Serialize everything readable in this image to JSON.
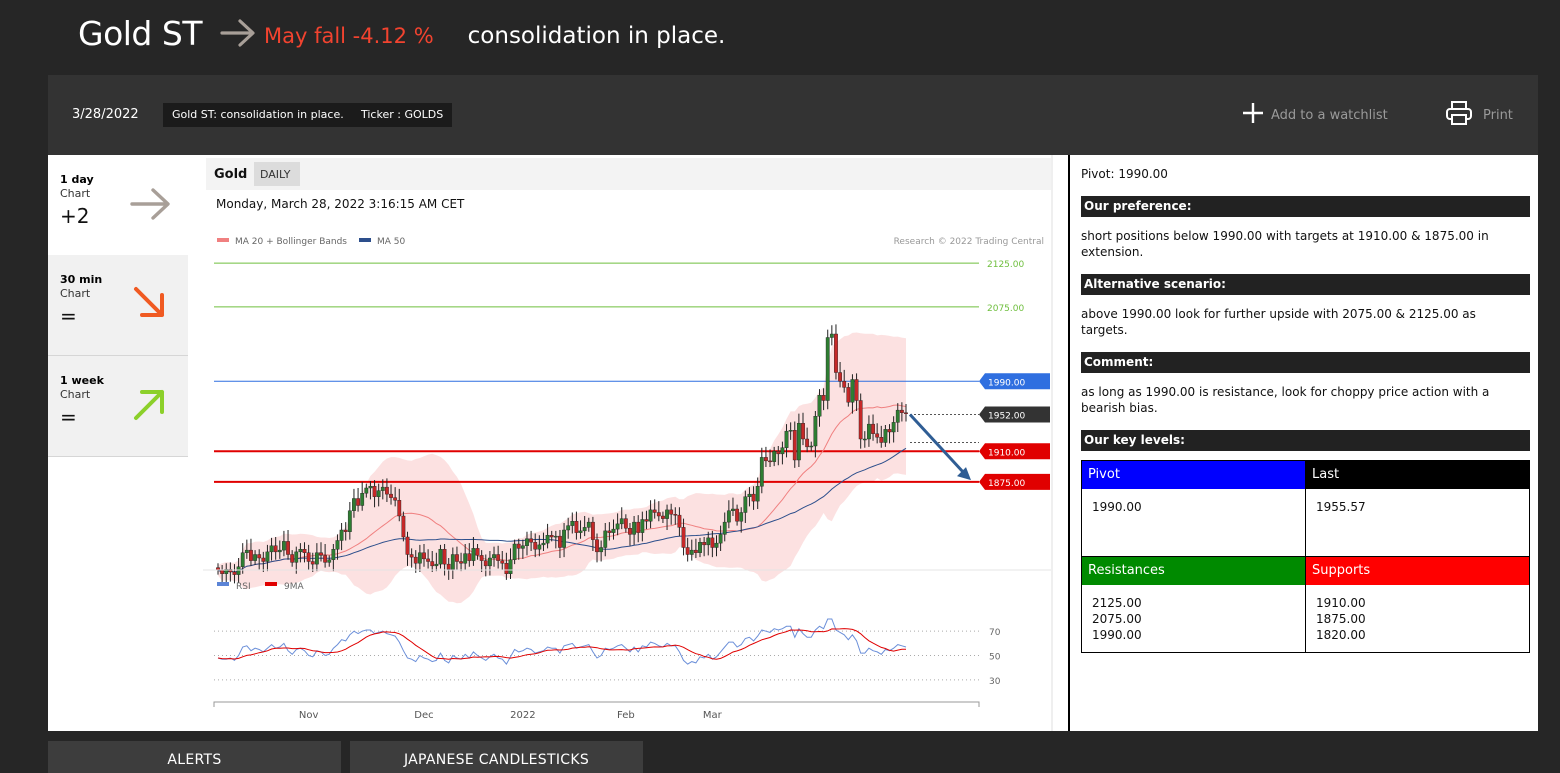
{
  "header": {
    "instrument": "Gold ST",
    "direction_icon": "arrow-right-icon",
    "move_text": "May fall -4.12 %",
    "summary": "consolidation in place."
  },
  "toolbar": {
    "date": "3/28/2022",
    "headline_badge": "Gold ST: consolidation in place.",
    "ticker_badge": "Ticker : GOLDS",
    "watchlist_label": "Add to a watchlist",
    "print_label": "Print"
  },
  "timeframes": [
    {
      "name": "1 day",
      "sub": "Chart",
      "value": "+2",
      "icon": "arrow-right-icon",
      "color": "#a89f98"
    },
    {
      "name": "30 min",
      "sub": "Chart",
      "value": "=",
      "icon": "arrow-down-right-icon",
      "color": "#f05a22"
    },
    {
      "name": "1 week",
      "sub": "Chart",
      "value": "=",
      "icon": "arrow-up-right-icon",
      "color": "#8cd02a"
    }
  ],
  "chart": {
    "instrument": "Gold",
    "period": "DAILY",
    "timestamp": "Monday, March 28, 2022 3:16:15 AM CET",
    "legend_ma20": "MA 20 + Bollinger Bands",
    "legend_ma50": "MA 50",
    "copyright": "Research © 2022 Trading Central",
    "rsi_legend": "RSI",
    "rsi_ma_legend": "9MA"
  },
  "chart_data": {
    "type": "candlestick",
    "price_ylim": [
      1780,
      2140
    ],
    "target_lines": [
      {
        "label": "2125.00",
        "value": 2125.0,
        "color": "#6fbf3e"
      },
      {
        "label": "2075.00",
        "value": 2075.0,
        "color": "#6fbf3e"
      }
    ],
    "pivot_line": {
      "label": "1990.00",
      "value": 1990.0,
      "color": "#2f6fe0"
    },
    "last_line": {
      "label": "1952.00",
      "value": 1952.0,
      "color": "#333333"
    },
    "support_lines": [
      {
        "label": "1910.00",
        "value": 1910.0,
        "color": "#e00000"
      },
      {
        "label": "1875.00",
        "value": 1875.0,
        "color": "#e00000"
      }
    ],
    "rsi_ylim": [
      25,
      80
    ],
    "rsi_levels": [
      70,
      50,
      30
    ],
    "x_ticks": [
      "Nov",
      "Dec",
      "2022",
      "Feb",
      "Mar"
    ],
    "closes": [
      1774,
      1770,
      1775,
      1772,
      1769,
      1778,
      1794,
      1797,
      1785,
      1792,
      1788,
      1784,
      1795,
      1802,
      1795,
      1797,
      1807,
      1792,
      1783,
      1795,
      1798,
      1794,
      1784,
      1781,
      1794,
      1791,
      1783,
      1786,
      1798,
      1808,
      1820,
      1818,
      1842,
      1856,
      1848,
      1862,
      1868,
      1870,
      1858,
      1865,
      1869,
      1861,
      1857,
      1854,
      1836,
      1812,
      1792,
      1789,
      1782,
      1794,
      1787,
      1784,
      1779,
      1781,
      1798,
      1781,
      1775,
      1792,
      1784,
      1782,
      1793,
      1785,
      1799,
      1791,
      1785,
      1779,
      1788,
      1792,
      1785,
      1782,
      1770,
      1786,
      1804,
      1799,
      1802,
      1810,
      1806,
      1798,
      1803,
      1805,
      1814,
      1812,
      1813,
      1800,
      1820,
      1825,
      1830,
      1817,
      1819,
      1823,
      1829,
      1809,
      1795,
      1800,
      1819,
      1817,
      1821,
      1827,
      1833,
      1822,
      1815,
      1829,
      1817,
      1832,
      1830,
      1843,
      1840,
      1836,
      1833,
      1843,
      1838,
      1837,
      1823,
      1800,
      1792,
      1797,
      1794,
      1806,
      1803,
      1811,
      1800,
      1805,
      1815,
      1829,
      1842,
      1844,
      1830,
      1840,
      1858,
      1861,
      1853,
      1870,
      1903,
      1899,
      1898,
      1910,
      1907,
      1914,
      1933,
      1934,
      1900,
      1942,
      1924,
      1915,
      1916,
      1950,
      1974,
      1968,
      2040,
      2044,
      2000,
      1990,
      1983,
      1966,
      1992,
      1968,
      1924,
      1924,
      1941,
      1930,
      1926,
      1920,
      1935,
      1932,
      1943,
      1957,
      1954,
      1953
    ],
    "rsi": [
      48,
      47,
      47,
      48,
      46,
      50,
      57,
      58,
      54,
      56,
      55,
      53,
      56,
      59,
      56,
      57,
      60,
      54,
      51,
      55,
      56,
      54,
      50,
      49,
      54,
      53,
      50,
      51,
      56,
      59,
      63,
      62,
      67,
      70,
      68,
      70,
      71,
      71,
      68,
      69,
      70,
      68,
      67,
      66,
      61,
      54,
      48,
      47,
      45,
      50,
      48,
      47,
      45,
      46,
      52,
      46,
      44,
      50,
      48,
      47,
      51,
      48,
      53,
      50,
      48,
      46,
      49,
      51,
      48,
      47,
      43,
      49,
      55,
      53,
      54,
      56,
      55,
      52,
      53,
      54,
      57,
      56,
      56,
      52,
      58,
      59,
      60,
      56,
      57,
      58,
      59,
      53,
      48,
      50,
      56,
      55,
      56,
      58,
      59,
      56,
      53,
      57,
      53,
      58,
      57,
      61,
      60,
      58,
      57,
      60,
      58,
      58,
      53,
      46,
      43,
      45,
      44,
      49,
      48,
      51,
      47,
      49,
      53,
      57,
      61,
      61,
      57,
      59,
      64,
      65,
      62,
      66,
      71,
      70,
      69,
      72,
      71,
      72,
      74,
      74,
      65,
      72,
      68,
      65,
      65,
      71,
      74,
      72,
      80,
      80,
      71,
      69,
      67,
      63,
      67,
      62,
      52,
      52,
      56,
      54,
      53,
      51,
      55,
      54,
      56,
      59,
      58,
      57
    ]
  },
  "analysis": {
    "pivot_line": "Pivot: 1990.00",
    "preference_title": "Our preference:",
    "preference_text": "short positions below 1990.00 with targets at 1910.00 & 1875.00 in extension.",
    "alternative_title": "Alternative scenario:",
    "alternative_text": "above 1990.00 look for further upside with 2075.00 & 2125.00 as targets.",
    "comment_title": "Comment:",
    "comment_text": "as long as 1990.00 is resistance, look for choppy price action with a bearish bias.",
    "key_levels_title": "Our key levels:"
  },
  "key_levels": {
    "pivot_label": "Pivot",
    "pivot_value": "1990.00",
    "last_label": "Last",
    "last_value": "1955.57",
    "resistances_label": "Resistances",
    "resistances": [
      "2125.00",
      "2075.00",
      "1990.00"
    ],
    "supports_label": "Supports",
    "supports": [
      "1910.00",
      "1875.00",
      "1820.00"
    ],
    "colors": {
      "pivot": "#0000ff",
      "last": "#000000",
      "resistances": "#008a00",
      "supports": "#ff0000"
    }
  },
  "bottom_tabs": [
    "ALERTS",
    "JAPANESE CANDLESTICKS"
  ]
}
